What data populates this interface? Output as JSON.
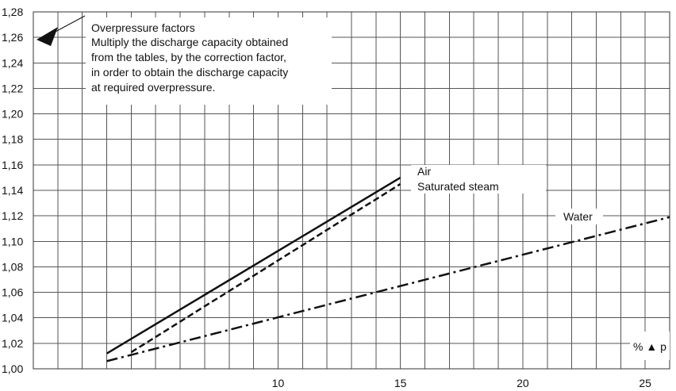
{
  "chart_data": {
    "type": "line",
    "title": "",
    "xlabel": "% ▲ p",
    "ylabel": "",
    "xlim": [
      0,
      26
    ],
    "ylim": [
      1.0,
      1.28
    ],
    "x_ticks": [
      "10",
      "15",
      "20",
      "25"
    ],
    "y_ticks": [
      "1,00",
      "1,02",
      "1,04",
      "1,06",
      "1,08",
      "1,10",
      "1,12",
      "1,14",
      "1,16",
      "1,18",
      "1,20",
      "1,22",
      "1,24",
      "1,26",
      "1,28"
    ],
    "grid": true,
    "annotation": {
      "title": "Overpressure factors",
      "lines": [
        "Multiply the discharge capacity obtained",
        "from the tables, by the correction factor,",
        "in order to obtain the discharge capacity",
        "at required overpressure."
      ]
    },
    "series": [
      {
        "name": "Air",
        "style": "solid",
        "x": [
          3,
          15
        ],
        "y": [
          1.012,
          1.15
        ]
      },
      {
        "name": "Saturated steam",
        "style": "dashed",
        "x": [
          4,
          15
        ],
        "y": [
          1.013,
          1.145
        ]
      },
      {
        "name": "Water",
        "style": "dashdot",
        "x": [
          3,
          26
        ],
        "y": [
          1.006,
          1.119
        ]
      }
    ]
  }
}
